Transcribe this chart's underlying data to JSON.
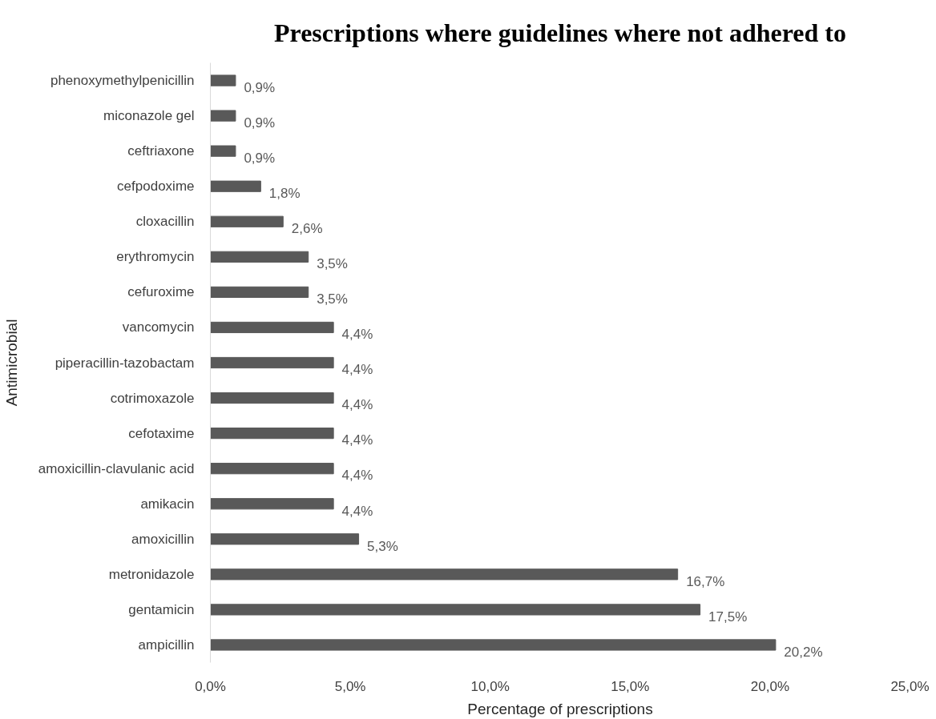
{
  "chart_data": {
    "type": "bar",
    "orientation": "horizontal",
    "title": "Prescriptions where guidelines where not adhered to",
    "xlabel": "Percentage of prescriptions",
    "ylabel": "Antimicrobial",
    "categories": [
      "phenoxymethylpenicillin",
      "miconazole gel",
      "ceftriaxone",
      "cefpodoxime",
      "cloxacillin",
      "erythromycin",
      "cefuroxime",
      "vancomycin",
      "piperacillin-tazobactam",
      "cotrimoxazole",
      "cefotaxime",
      "amoxicillin-clavulanic acid",
      "amikacin",
      "amoxicillin",
      "metronidazole",
      "gentamicin",
      "ampicillin"
    ],
    "values": [
      0.9,
      0.9,
      0.9,
      1.8,
      2.6,
      3.5,
      3.5,
      4.4,
      4.4,
      4.4,
      4.4,
      4.4,
      4.4,
      5.3,
      16.7,
      17.5,
      20.2
    ],
    "value_labels": [
      "0,9%",
      "0,9%",
      "0,9%",
      "1,8%",
      "2,6%",
      "3,5%",
      "3,5%",
      "4,4%",
      "4,4%",
      "4,4%",
      "4,4%",
      "4,4%",
      "4,4%",
      "5,3%",
      "16,7%",
      "17,5%",
      "20,2%"
    ],
    "color": "#595959",
    "xlim": [
      0,
      25
    ],
    "xticks": [
      {
        "value": 0,
        "label": "0,0%"
      },
      {
        "value": 5,
        "label": "5,0%"
      },
      {
        "value": 10,
        "label": "10,0%"
      },
      {
        "value": 15,
        "label": "15,0%"
      },
      {
        "value": 20,
        "label": "20,0%"
      },
      {
        "value": 25,
        "label": "25,0%"
      }
    ]
  }
}
